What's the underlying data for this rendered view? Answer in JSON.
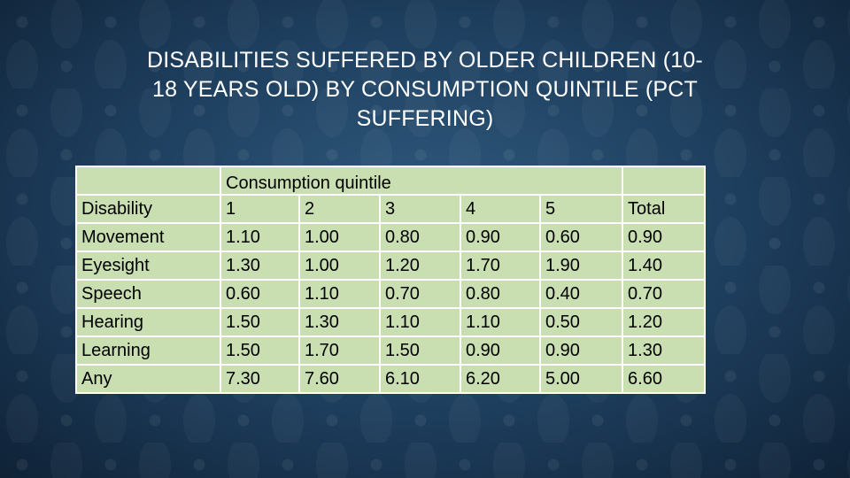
{
  "slide": {
    "title_line1": "DISABILITIES SUFFERED BY OLDER CHILDREN (10-",
    "title_line2": "18 YEARS OLD) BY CONSUMPTION QUINTILE (PCT",
    "title_line3": "SUFFERING)"
  },
  "table": {
    "group_header": "Consumption quintile",
    "columns": [
      "Disability",
      "1",
      "2",
      "3",
      "4",
      "5",
      "Total"
    ],
    "rows": [
      {
        "label": "Movement",
        "values": [
          "1.10",
          "1.00",
          "0.80",
          "0.90",
          "0.60",
          "0.90"
        ]
      },
      {
        "label": "Eyesight",
        "values": [
          "1.30",
          "1.00",
          "1.20",
          "1.70",
          "1.90",
          "1.40"
        ]
      },
      {
        "label": "Speech",
        "values": [
          "0.60",
          "1.10",
          "0.70",
          "0.80",
          "0.40",
          "0.70"
        ]
      },
      {
        "label": "Hearing",
        "values": [
          "1.50",
          "1.30",
          "1.10",
          "1.10",
          "0.50",
          "1.20"
        ]
      },
      {
        "label": "Learning",
        "values": [
          "1.50",
          "1.70",
          "1.50",
          "0.90",
          "0.90",
          "1.30"
        ]
      },
      {
        "label": "Any",
        "values": [
          "7.30",
          "7.60",
          "6.10",
          "6.20",
          "5.00",
          "6.60"
        ]
      }
    ],
    "cell_color": "#c9dfb2",
    "border_color": "#ffffff"
  },
  "theme": {
    "background": "#1d3d5c",
    "title_color": "#ffffff"
  }
}
